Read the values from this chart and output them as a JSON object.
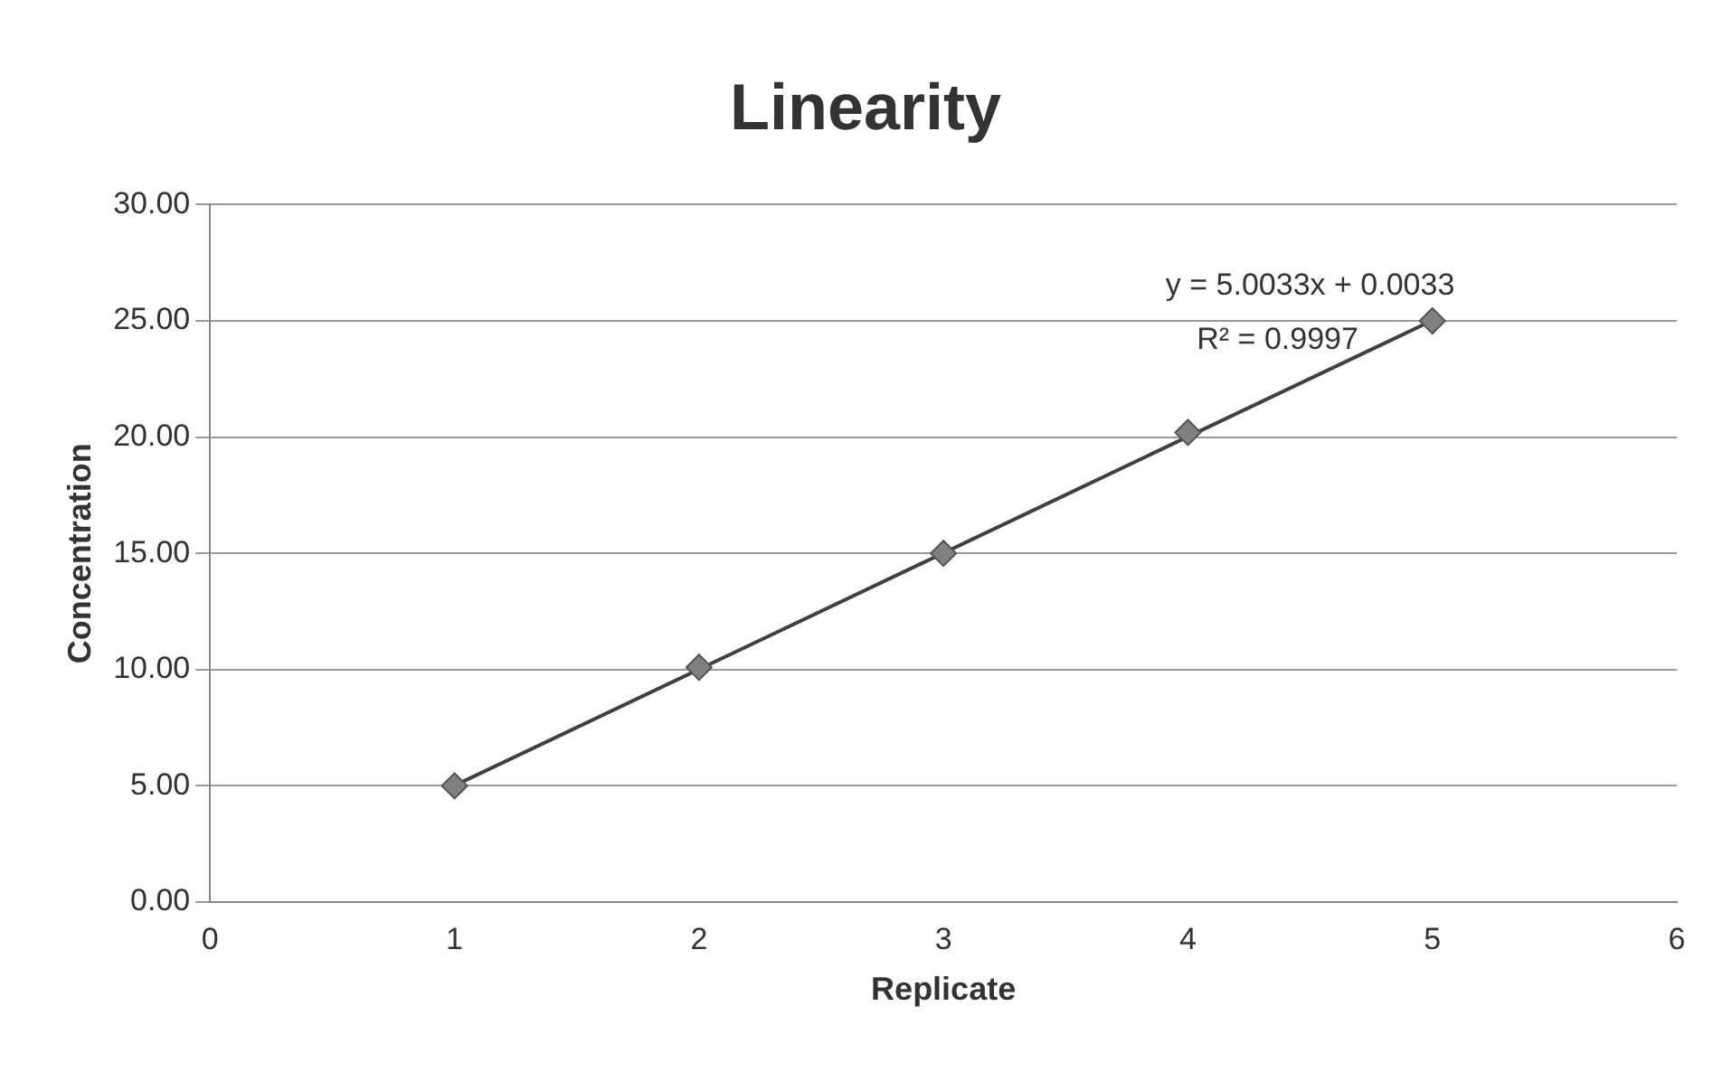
{
  "chart_data": {
    "type": "scatter",
    "title": "Linearity",
    "xlabel": "Replicate",
    "ylabel": "Concentration",
    "annotations": [
      "y = 5.0033x + 0.0033",
      "R² = 0.9997"
    ],
    "series": [
      {
        "type": "scatter",
        "color": "#808080",
        "x": [
          1,
          2,
          3,
          4,
          5
        ],
        "values": [
          5,
          10.1,
          15,
          20.2,
          25
        ],
        "marker": "diamond"
      },
      {
        "type": "line",
        "color": "#404040",
        "x": [
          1,
          5
        ],
        "values": [
          5.01,
          25.02
        ],
        "marker": "none"
      }
    ],
    "xlim": [
      0,
      6
    ],
    "xticks": [
      0,
      1,
      2,
      3,
      4,
      5,
      6
    ],
    "ylim": [
      0,
      30
    ],
    "yticks": [
      {
        "value": 0,
        "label": "0.00"
      },
      {
        "value": 5,
        "label": "5.00"
      },
      {
        "value": 10,
        "label": "10.00"
      },
      {
        "value": 15,
        "label": "15.00"
      },
      {
        "value": 20,
        "label": "20.00"
      },
      {
        "value": 25,
        "label": "25.00"
      },
      {
        "value": 30,
        "label": "30.00"
      }
    ],
    "grid": "y",
    "legend": false
  }
}
